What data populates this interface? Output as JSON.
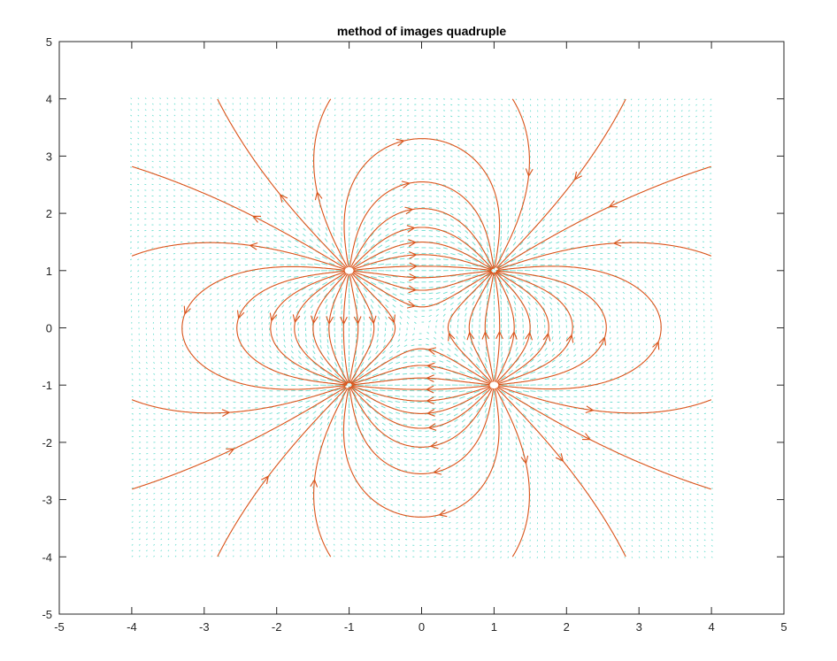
{
  "chart_data": {
    "type": "streamline",
    "title": "method of images quadruple",
    "xlabel": "",
    "ylabel": "",
    "xlim": [
      -5,
      5
    ],
    "ylim": [
      -5,
      5
    ],
    "xticks": [
      -5,
      -4,
      -3,
      -2,
      -1,
      0,
      1,
      2,
      3,
      4,
      5
    ],
    "yticks": [
      -5,
      -4,
      -3,
      -2,
      -1,
      0,
      1,
      2,
      3,
      4,
      5
    ],
    "grid": false,
    "field_domain": {
      "x": [
        -4,
        4
      ],
      "y": [
        -4,
        4
      ]
    },
    "charges": [
      {
        "x": -1,
        "y": 1,
        "q": 1
      },
      {
        "x": 1,
        "y": 1,
        "q": -1
      },
      {
        "x": -1,
        "y": -1,
        "q": -1
      },
      {
        "x": 1,
        "y": -1,
        "q": 1
      }
    ],
    "series": [
      {
        "kind": "quiver",
        "color": "#4fd8c8"
      },
      {
        "kind": "streamlines",
        "color": "#d95319"
      }
    ]
  }
}
